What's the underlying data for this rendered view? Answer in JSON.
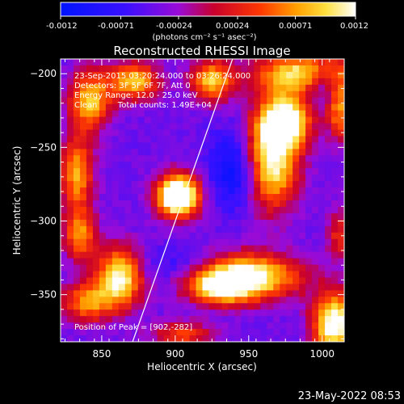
{
  "colorbar": {
    "ticks": [
      "-0.0012",
      "-0.00071",
      "-0.00024",
      "0.00024",
      "0.00071",
      "0.0012"
    ],
    "unit_label": "(photons cm⁻² s⁻¹ asec⁻²)",
    "range": [
      -0.0012,
      0.0012
    ]
  },
  "chart_data": {
    "type": "heatmap",
    "title": "Reconstructed RHESSI Image",
    "xlabel": "Heliocentric X (arcsec)",
    "ylabel": "Heliocentric Y (arcsec)",
    "xlim": [
      822,
      1015
    ],
    "ylim": [
      -382,
      -190
    ],
    "xticks": [
      850,
      900,
      950,
      1000
    ],
    "xtick_labels": [
      "850",
      "900",
      "950",
      "1000"
    ],
    "yticks": [
      -200,
      -250,
      -300,
      -350
    ],
    "ytick_labels": [
      "−200",
      "−250",
      "−300",
      "−350"
    ],
    "limb_line": [
      [
        871,
        -382
      ],
      [
        939,
        -190
      ]
    ],
    "annotations": [
      "23-Sep-2015 03:20:24.000 to 03:26:24.000",
      "Detectors: 3F 5F 6F 7F, Att 0",
      "Energy Range: 12.0 - 25.0 keV",
      "Clean        Total counts: 1.49E+04"
    ],
    "peak_label": "Position of Peak = [902,-282]",
    "peak": [
      902,
      -282
    ],
    "sources": [
      {
        "x": 902,
        "y": -283,
        "amp": 1.0,
        "sx": 10,
        "sy": 10
      },
      {
        "x": 948,
        "y": -338,
        "amp": 0.75,
        "sx": 25,
        "sy": 11
      },
      {
        "x": 930,
        "y": -345,
        "amp": 0.45,
        "sx": 14,
        "sy": 8
      },
      {
        "x": 965,
        "y": -260,
        "amp": 0.7,
        "sx": 13,
        "sy": 22
      },
      {
        "x": 975,
        "y": -232,
        "amp": 0.75,
        "sx": 12,
        "sy": 12
      },
      {
        "x": 988,
        "y": -200,
        "amp": 0.65,
        "sx": 24,
        "sy": 10
      },
      {
        "x": 925,
        "y": -205,
        "amp": 0.55,
        "sx": 10,
        "sy": 10
      },
      {
        "x": 872,
        "y": -205,
        "amp": 0.55,
        "sx": 12,
        "sy": 9
      },
      {
        "x": 842,
        "y": -218,
        "amp": 0.55,
        "sx": 10,
        "sy": 14
      },
      {
        "x": 833,
        "y": -268,
        "amp": 0.5,
        "sx": 8,
        "sy": 18
      },
      {
        "x": 835,
        "y": -310,
        "amp": 0.45,
        "sx": 8,
        "sy": 12
      },
      {
        "x": 862,
        "y": -338,
        "amp": 0.7,
        "sx": 11,
        "sy": 14
      },
      {
        "x": 840,
        "y": -355,
        "amp": 0.45,
        "sx": 12,
        "sy": 10
      },
      {
        "x": 1008,
        "y": -370,
        "amp": 0.75,
        "sx": 10,
        "sy": 15
      },
      {
        "x": 1012,
        "y": -225,
        "amp": 0.45,
        "sx": 6,
        "sy": 14
      },
      {
        "x": 1012,
        "y": -310,
        "amp": 0.3,
        "sx": 6,
        "sy": 12
      },
      {
        "x": 905,
        "y": -377,
        "amp": 0.35,
        "sx": 15,
        "sy": 6
      }
    ],
    "dips": [
      {
        "x": 942,
        "y": -265,
        "amp": -0.35,
        "sx": 12,
        "sy": 18
      },
      {
        "x": 1000,
        "y": -205,
        "amp": -0.3,
        "sx": 9,
        "sy": 9
      },
      {
        "x": 905,
        "y": -330,
        "amp": -0.15,
        "sx": 25,
        "sy": 8
      }
    ]
  },
  "timestamp": "23-May-2022 08:53"
}
